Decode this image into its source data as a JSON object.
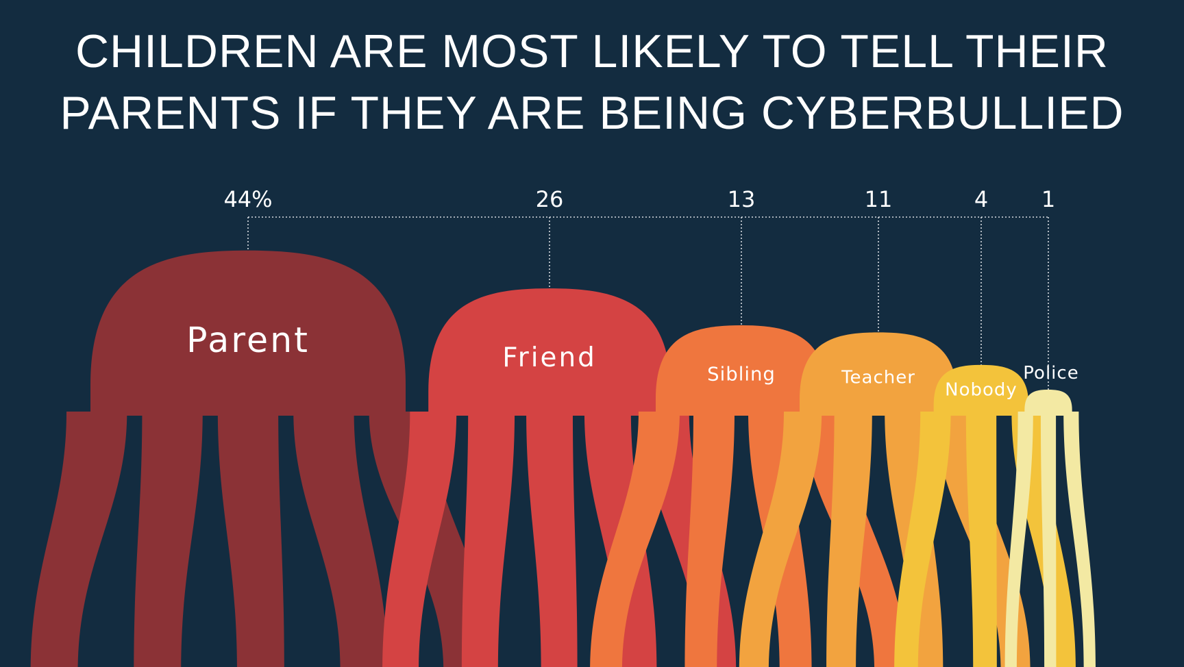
{
  "title_lines": [
    "Children are most likely to tell their",
    "parents if they are being cyberbullied"
  ],
  "chart_data": {
    "type": "bar",
    "title": "Children are most likely to tell their parents if they are being cyberbullied",
    "categories": [
      "Parent",
      "Friend",
      "Sibling",
      "Teacher",
      "Nobody",
      "Police"
    ],
    "values": [
      44,
      26,
      13,
      11,
      4,
      1
    ],
    "value_labels": [
      "44%",
      "26",
      "13",
      "11",
      "4",
      "1"
    ],
    "unit": "%",
    "colors": [
      "#8b3236",
      "#d44343",
      "#ef763e",
      "#f2a33f",
      "#f3c33b",
      "#f3e9a3"
    ],
    "label_color": "#ffffff",
    "leader_line_color": "#d9dde2"
  }
}
